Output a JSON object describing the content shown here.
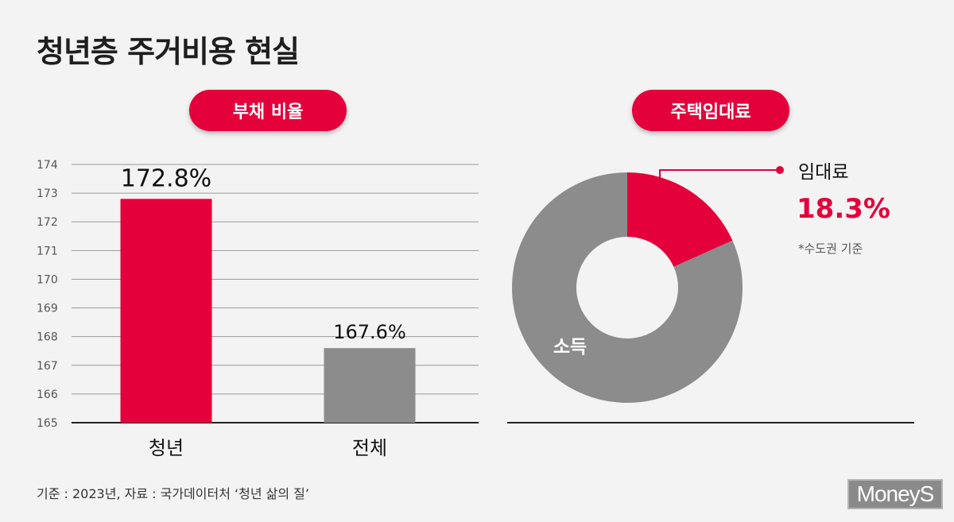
{
  "title": "청년층 주거비용 현실",
  "footnote": "기준 : 2023년, 자료 : 국가데이터처 ‘청년 삶의 질’",
  "logo": "MoneyS",
  "colors": {
    "accent": "#e4003a",
    "gray": "#8c8c8c",
    "background": "#f3f3f3"
  },
  "chart_data": [
    {
      "type": "bar",
      "title": "부채 비율",
      "categories": [
        "청년",
        "전체"
      ],
      "values": [
        172.8,
        167.6
      ],
      "value_labels": [
        "172.8%",
        "167.6%"
      ],
      "bar_colors": [
        "#e4003a",
        "#8c8c8c"
      ],
      "ylim": [
        165,
        174
      ],
      "yticks": [
        165,
        166,
        167,
        168,
        169,
        170,
        171,
        172,
        173,
        174
      ],
      "grid": true
    },
    {
      "type": "pie",
      "title": "주택임대료",
      "labels": [
        "임대료",
        "소득"
      ],
      "values": [
        18.3,
        81.7
      ],
      "value_label": "18.3%",
      "slice_colors": [
        "#e4003a",
        "#8c8c8c"
      ],
      "note": "*수도권 기준"
    }
  ]
}
